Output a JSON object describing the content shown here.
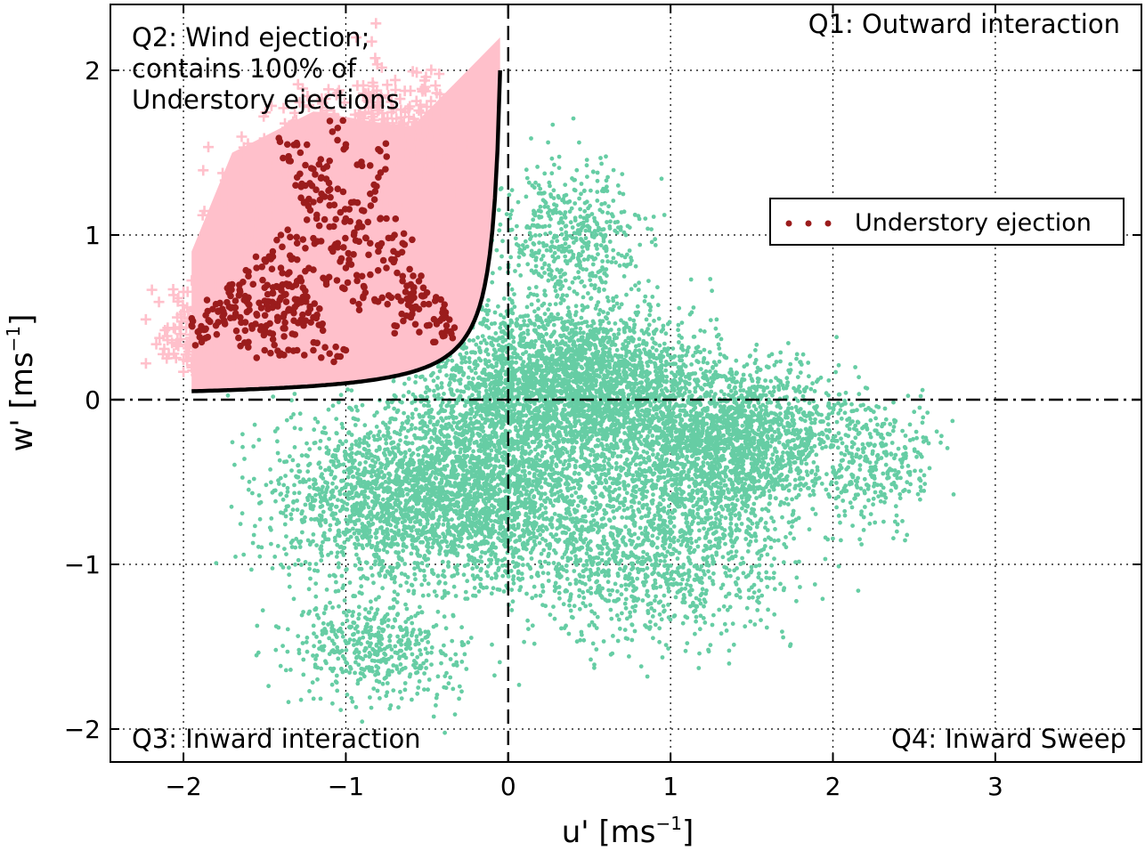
{
  "chart_data": {
    "type": "scatter",
    "xlabel_main": "u' [ms",
    "xlabel_sup": "−1",
    "xlabel_end": "]",
    "ylabel_main": "w' [ms",
    "ylabel_sup": "−1",
    "ylabel_end": "]",
    "xlim": [
      -2.45,
      3.9
    ],
    "ylim": [
      -2.2,
      2.4
    ],
    "x_ticks": [
      -2,
      -1,
      0,
      1,
      2,
      3
    ],
    "y_ticks": [
      -2,
      -1,
      0,
      1,
      2
    ],
    "x_tick_labels": [
      "−2",
      "−1",
      "0",
      "1",
      "2",
      "3"
    ],
    "y_tick_labels": [
      "−2",
      "−1",
      "0",
      "1",
      "2"
    ],
    "grid": true,
    "legend_position": "upper-right",
    "quadrant_labels": {
      "q1": "Q1: Outward interaction",
      "q2_lines": [
        "Q2: Wind ejection;",
        "contains 100% of",
        "Understory ejections"
      ],
      "q3": "Q3: Inward interaction",
      "q4": "Q4: Inward Sweep"
    },
    "colors": {
      "wind": "#66cda4",
      "wind_ejection_fill": "#ffc0cb",
      "wind_ejection_marker": "#ffc0cb",
      "understory": "#9b1c1c",
      "boundary": "#000000"
    },
    "series": [
      {
        "key": "understory",
        "name": "Understory ejection",
        "marker": "dot",
        "points": [
          [
            -1.4,
            0.62
          ],
          [
            -1.35,
            0.55
          ],
          [
            -1.3,
            0.58
          ],
          [
            -1.25,
            0.66
          ],
          [
            -1.42,
            0.48
          ],
          [
            -1.5,
            0.6
          ],
          [
            -1.55,
            0.52
          ],
          [
            -1.6,
            0.58
          ],
          [
            -1.65,
            0.5
          ],
          [
            -1.7,
            0.56
          ],
          [
            -1.75,
            0.48
          ],
          [
            -1.2,
            0.5
          ],
          [
            -1.15,
            0.45
          ],
          [
            -1.3,
            0.72
          ],
          [
            -1.35,
            0.7
          ],
          [
            -1.45,
            0.65
          ],
          [
            -1.5,
            0.68
          ],
          [
            -1.6,
            0.62
          ],
          [
            -1.8,
            0.45
          ],
          [
            -1.85,
            0.38
          ],
          [
            -1.9,
            0.42
          ],
          [
            -1.38,
            0.52
          ],
          [
            -1.28,
            0.6
          ],
          [
            -1.22,
            0.55
          ],
          [
            -1.32,
            0.48
          ],
          [
            -1.48,
            0.55
          ],
          [
            -1.58,
            0.45
          ],
          [
            -1.68,
            0.6
          ],
          [
            -1.72,
            0.65
          ],
          [
            -1.4,
            0.8
          ],
          [
            -1.3,
            0.85
          ],
          [
            -1.25,
            0.78
          ],
          [
            -1.2,
            1.2
          ],
          [
            -1.15,
            1.25
          ],
          [
            -1.25,
            1.3
          ],
          [
            -1.1,
            1.18
          ],
          [
            -1.05,
            1.28
          ],
          [
            -1.2,
            1.4
          ],
          [
            -1.3,
            1.35
          ],
          [
            -1.35,
            1.45
          ],
          [
            -1.28,
            1.5
          ],
          [
            -1.15,
            1.35
          ],
          [
            -1.1,
            1.05
          ],
          [
            -1.0,
            1.1
          ],
          [
            -0.95,
            1.0
          ],
          [
            -0.9,
            1.05
          ],
          [
            -0.85,
            0.95
          ],
          [
            -1.05,
            0.95
          ],
          [
            -0.95,
            1.2
          ],
          [
            -0.9,
            1.15
          ],
          [
            -0.8,
            0.9
          ],
          [
            -0.75,
            0.8
          ],
          [
            -0.7,
            0.85
          ],
          [
            -0.65,
            0.75
          ],
          [
            -0.6,
            0.7
          ],
          [
            -0.55,
            0.72
          ],
          [
            -0.5,
            0.65
          ],
          [
            -0.45,
            0.6
          ],
          [
            -0.4,
            0.55
          ],
          [
            -0.85,
            1.25
          ],
          [
            -0.8,
            1.35
          ],
          [
            -0.9,
            1.42
          ],
          [
            -0.8,
            1.52
          ],
          [
            -1.4,
            1.0
          ],
          [
            -1.45,
            0.9
          ],
          [
            -1.5,
            0.85
          ],
          [
            -1.3,
            0.95
          ],
          [
            -1.2,
            0.98
          ],
          [
            -1.0,
            0.8
          ],
          [
            -0.9,
            0.75
          ],
          [
            -1.6,
            0.35
          ],
          [
            -1.5,
            0.3
          ],
          [
            -1.4,
            0.28
          ],
          [
            -1.3,
            0.3
          ],
          [
            -1.2,
            0.3
          ],
          [
            -1.1,
            0.28
          ],
          [
            -1.0,
            0.3
          ],
          [
            -0.7,
            0.45
          ],
          [
            -0.6,
            0.5
          ],
          [
            -0.75,
            1.1
          ],
          [
            -0.7,
            1.0
          ],
          [
            -0.65,
            0.95
          ],
          [
            -1.0,
            1.55
          ],
          [
            -1.1,
            1.45
          ],
          [
            -1.25,
            1.2
          ],
          [
            -1.05,
            1.65
          ],
          [
            -1.9,
            0.38
          ],
          [
            -1.8,
            0.58
          ],
          [
            -1.7,
            0.7
          ],
          [
            -1.6,
            0.75
          ],
          [
            -1.55,
            0.8
          ],
          [
            -0.35,
            0.4
          ],
          [
            -0.45,
            0.35
          ],
          [
            -0.5,
            0.45
          ],
          [
            -0.55,
            0.55
          ],
          [
            -1.36,
            1.55
          ],
          [
            -1.18,
            1.1
          ],
          [
            -1.08,
            0.9
          ],
          [
            -0.98,
            0.85
          ],
          [
            -0.88,
            0.65
          ],
          [
            -1.45,
            0.4
          ],
          [
            -1.5,
            0.42
          ],
          [
            -1.62,
            0.42
          ],
          [
            -1.75,
            0.52
          ],
          [
            -1.82,
            0.55
          ],
          [
            -1.26,
            0.45
          ],
          [
            -1.33,
            0.4
          ],
          [
            -1.12,
            0.7
          ],
          [
            -1.02,
            0.68
          ],
          [
            -0.92,
            0.58
          ],
          [
            -0.82,
            0.6
          ],
          [
            -0.72,
            0.62
          ],
          [
            -0.66,
            0.6
          ],
          [
            -0.58,
            0.62
          ],
          [
            -0.52,
            0.58
          ],
          [
            -0.42,
            0.48
          ],
          [
            -0.38,
            0.45
          ],
          [
            -1.95,
            0.45
          ],
          [
            -1.42,
            0.58
          ],
          [
            -1.37,
            0.64
          ]
        ]
      },
      {
        "key": "wind",
        "name": "",
        "marker": "dot",
        "clusters": [
          {
            "cx": 0.35,
            "cy": 0.1,
            "sx": 0.75,
            "sy": 0.45,
            "n": 3000
          },
          {
            "cx": -0.2,
            "cy": -0.55,
            "sx": 0.7,
            "sy": 0.5,
            "n": 2200
          },
          {
            "cx": 1.35,
            "cy": -0.25,
            "sx": 0.65,
            "sy": 0.45,
            "n": 2200
          },
          {
            "cx": 0.9,
            "cy": -0.9,
            "sx": 0.75,
            "sy": 0.5,
            "n": 1200
          },
          {
            "cx": -0.9,
            "cy": -0.6,
            "sx": 0.6,
            "sy": 0.45,
            "n": 900
          },
          {
            "cx": -0.8,
            "cy": -1.5,
            "sx": 0.5,
            "sy": 0.3,
            "n": 500
          },
          {
            "cx": 0.4,
            "cy": 1.0,
            "sx": 0.4,
            "sy": 0.4,
            "n": 500
          },
          {
            "cx": 2.3,
            "cy": -0.35,
            "sx": 0.35,
            "sy": 0.35,
            "n": 300
          }
        ]
      },
      {
        "key": "wind_ejection",
        "name": "",
        "marker": "plus",
        "clusters": [
          {
            "cx": -1.2,
            "cy": 1.2,
            "sx": 0.5,
            "sy": 0.5,
            "n": 700
          },
          {
            "cx": -0.7,
            "cy": 1.6,
            "sx": 0.4,
            "sy": 0.45,
            "n": 300
          },
          {
            "cx": -1.9,
            "cy": 0.4,
            "sx": 0.25,
            "sy": 0.3,
            "n": 150
          }
        ]
      }
    ],
    "boundary_curve": "w' = 0.1 / |u'|, for u' from −1.95 to −0.05"
  }
}
